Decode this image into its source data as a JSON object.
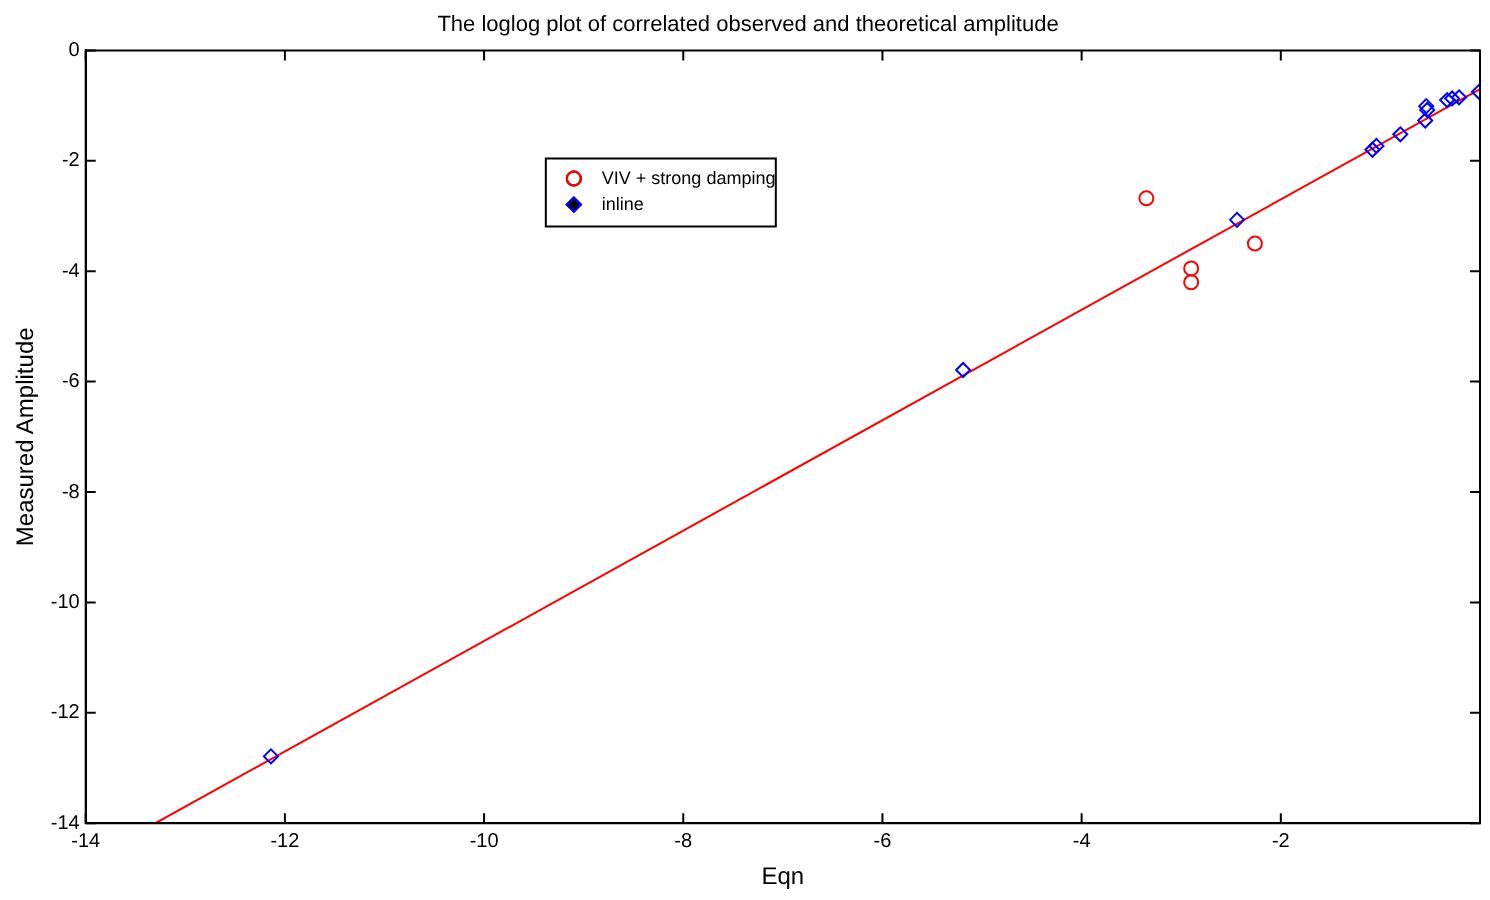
{
  "chart_data": {
    "type": "scatter",
    "title": "The loglog plot of correlated observed and theoretical amplitude",
    "xlabel": "Eqn",
    "ylabel": "Measured Amplitude",
    "xlim": [
      -14,
      0
    ],
    "ylim": [
      -14,
      0
    ],
    "xticks": [
      -14,
      -12,
      -10,
      -8,
      -6,
      -4,
      -2
    ],
    "yticks": [
      -14,
      -12,
      -10,
      -8,
      -6,
      -4,
      -2,
      0
    ],
    "grid": false,
    "legend": "top left",
    "series": [
      {
        "name": "VIV + strong damping",
        "color": "#ff0000",
        "marker": "circle",
        "x": [
          -3.35,
          -2.9,
          -2.9,
          -2.26
        ],
        "values": [
          -2.68,
          -3.95,
          -4.2,
          -3.5
        ]
      },
      {
        "name": "inline",
        "color": "#0000ff",
        "marker": "diamond",
        "x": [
          -12.14,
          -5.19,
          -2.44,
          -1.08,
          -1.04,
          -0.8,
          -0.54,
          -0.55,
          -0.53,
          -0.33,
          -0.28,
          -0.21,
          -0.01
        ],
        "values": [
          -12.79,
          -5.79,
          -3.07,
          -1.8,
          -1.73,
          -1.52,
          -1.01,
          -1.27,
          -1.08,
          -0.9,
          -0.87,
          -0.85,
          -0.75
        ]
      },
      {
        "type": "line",
        "color": "#ff0000",
        "marker": "none",
        "x": [
          -13.3,
          0
        ],
        "values": [
          -14,
          -0.7
        ]
      }
    ]
  }
}
